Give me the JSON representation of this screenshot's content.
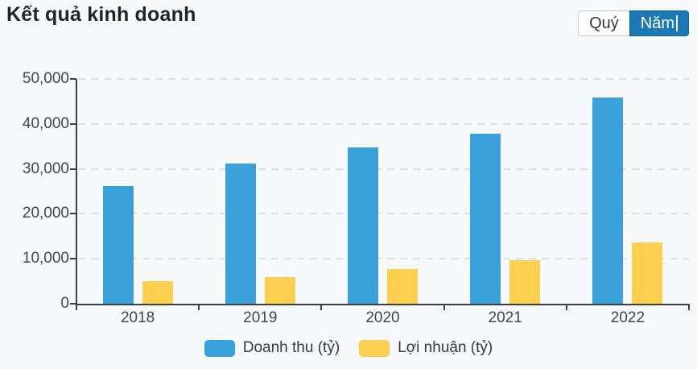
{
  "header": {
    "title": "Kết quả kinh doanh",
    "period_toggle": {
      "quarter_label": "Quý",
      "year_label": "Năm",
      "selected": "Năm"
    }
  },
  "chart_data": {
    "type": "bar",
    "title": "Kết quả kinh doanh",
    "categories": [
      "2018",
      "2019",
      "2020",
      "2021",
      "2022"
    ],
    "series": [
      {
        "name": "Doanh thu (tỷ)",
        "key": "revenue",
        "color": "#3aa1da",
        "values": [
          26200,
          31100,
          34800,
          37900,
          45900
        ]
      },
      {
        "name": "Lợi nhuận (tỷ)",
        "key": "profit",
        "color": "#fccf4e",
        "values": [
          5100,
          6000,
          7700,
          9600,
          13700
        ]
      }
    ],
    "ylim": [
      0,
      50000
    ],
    "ytick_step": 10000,
    "ytick_labels": [
      "0",
      "10,000",
      "20,000",
      "30,000",
      "40,000",
      "50,000"
    ],
    "xlabel": "",
    "ylabel": "",
    "grid": "horizontal-dashed",
    "legend_position": "bottom"
  },
  "colors": {
    "bar_revenue": "#3aa1da",
    "bar_profit": "#fccf4e",
    "active_button_bg": "#1b7ab5",
    "active_button_border": "#15639d",
    "inactive_button_border": "#c3c9cd",
    "axis": "#3b4045",
    "gridline": "#dcdfe3",
    "background": "#f6f8fa",
    "title_text": "#1d252c",
    "label_text": "#40474d"
  }
}
